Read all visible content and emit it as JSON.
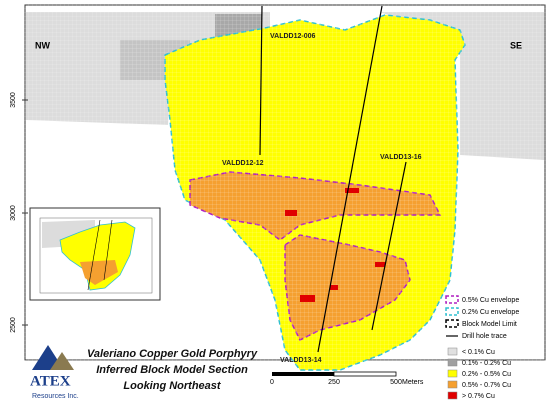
{
  "compass": {
    "left": "NW",
    "right": "SE"
  },
  "elevation_labels": [
    "3500",
    "3000",
    "2500"
  ],
  "drill_holes": [
    "VALDD12-006",
    "VALDD12-12",
    "VALDD13-16",
    "VALDD13-14"
  ],
  "title": {
    "lines": [
      "Valeriano Copper Gold Porphyry",
      "Inferred Block Model Section",
      "Looking Northeast"
    ]
  },
  "logo": {
    "name": "ATEX",
    "subtitle": "Resources Inc."
  },
  "scale_bar": {
    "labels": [
      "0",
      "250",
      "500"
    ],
    "unit": "Meters"
  },
  "legend": {
    "lines": [
      "0.5% Cu envelope",
      "0.2% Cu envelope",
      "Block Model Limit",
      "Drill hole trace"
    ],
    "grades": [
      "< 0.1% Cu",
      "0.1% - 0.2% Cu",
      "0.2% - 0.5% Cu",
      "0.5% - 0.7% Cu",
      "> 0.7% Cu"
    ]
  }
}
